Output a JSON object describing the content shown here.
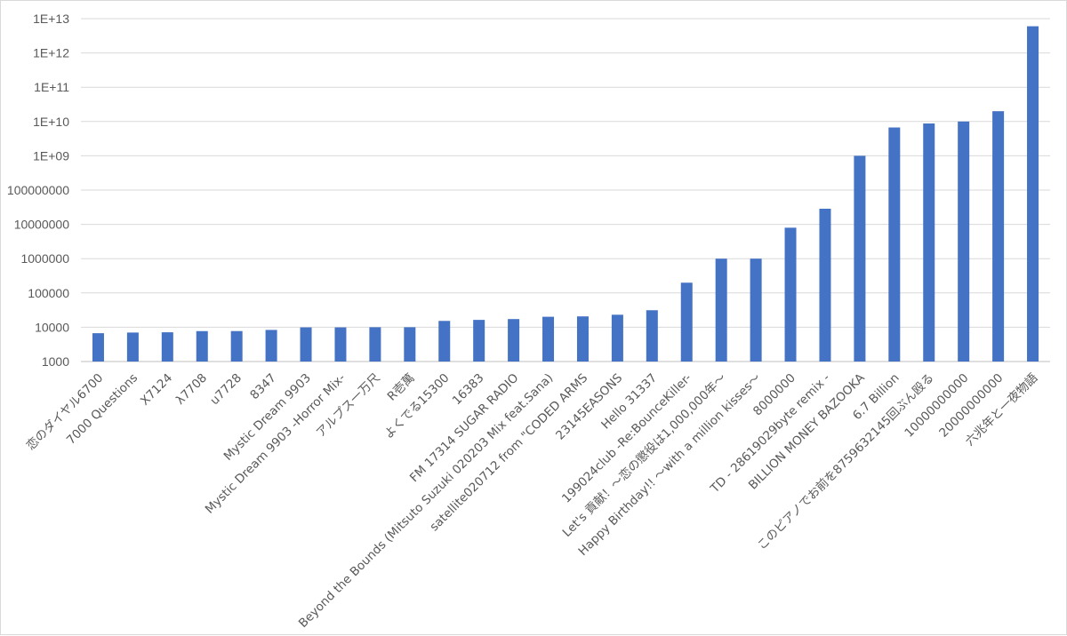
{
  "chart_data": {
    "type": "bar",
    "scale": "log",
    "ylim": [
      1000,
      10000000000000
    ],
    "grid": true,
    "legend": "none",
    "title": "",
    "xlabel": "",
    "ylabel": "",
    "bar_color": "#4472c4",
    "yticks": [
      {
        "value": 1000,
        "label": "1000"
      },
      {
        "value": 10000,
        "label": "10000"
      },
      {
        "value": 100000,
        "label": "100000"
      },
      {
        "value": 1000000,
        "label": "1000000"
      },
      {
        "value": 10000000,
        "label": "10000000"
      },
      {
        "value": 100000000,
        "label": "100000000"
      },
      {
        "value": 1000000000,
        "label": "1E+09"
      },
      {
        "value": 10000000000,
        "label": "1E+10"
      },
      {
        "value": 100000000000,
        "label": "1E+11"
      },
      {
        "value": 1000000000000,
        "label": "1E+12"
      },
      {
        "value": 10000000000000,
        "label": "1E+13"
      }
    ],
    "categories": [
      "恋のダイヤル6700",
      "7000 Questions",
      "X7124",
      "λ7708",
      "u7728",
      "8347",
      "Mystic Dream 9903",
      "Mystic Dream 9903 -Horror Mix-",
      "アルプス一万尺",
      "R壱萬",
      "よくでる15300",
      "16383",
      "FM 17314 SUGAR RADIO",
      "Beyond the Bounds (Mitsuto Suzuki 020203 Mix feat.Sana)",
      "satellite020712 from \"CODED ARMS",
      "23145EASONS",
      "Hello 31337",
      "199024club -Re:BounceKiller-",
      "Let's 貢献！～恋の懲役は1,000,000年～",
      "Happy Birthday!! ～with a million kisses～",
      "8000000",
      "TD - 28619029byte remix -",
      "BILLION MONEY BAZOOKA",
      "6.7 Billion",
      "このピアノでお前を8759632145回ぶん殴る",
      "10000000000",
      "20000000000",
      "六兆年と一夜物語"
    ],
    "values": [
      6700,
      7000,
      7124,
      7708,
      7728,
      8347,
      9903,
      9903,
      10000,
      10000,
      15300,
      16383,
      17314,
      20203,
      20712,
      23145,
      31337,
      199024,
      1000000,
      1000000,
      8000000,
      28619029,
      1000000000,
      6700000000,
      8759632145,
      10000000000,
      20000000000,
      6000000000000
    ]
  }
}
